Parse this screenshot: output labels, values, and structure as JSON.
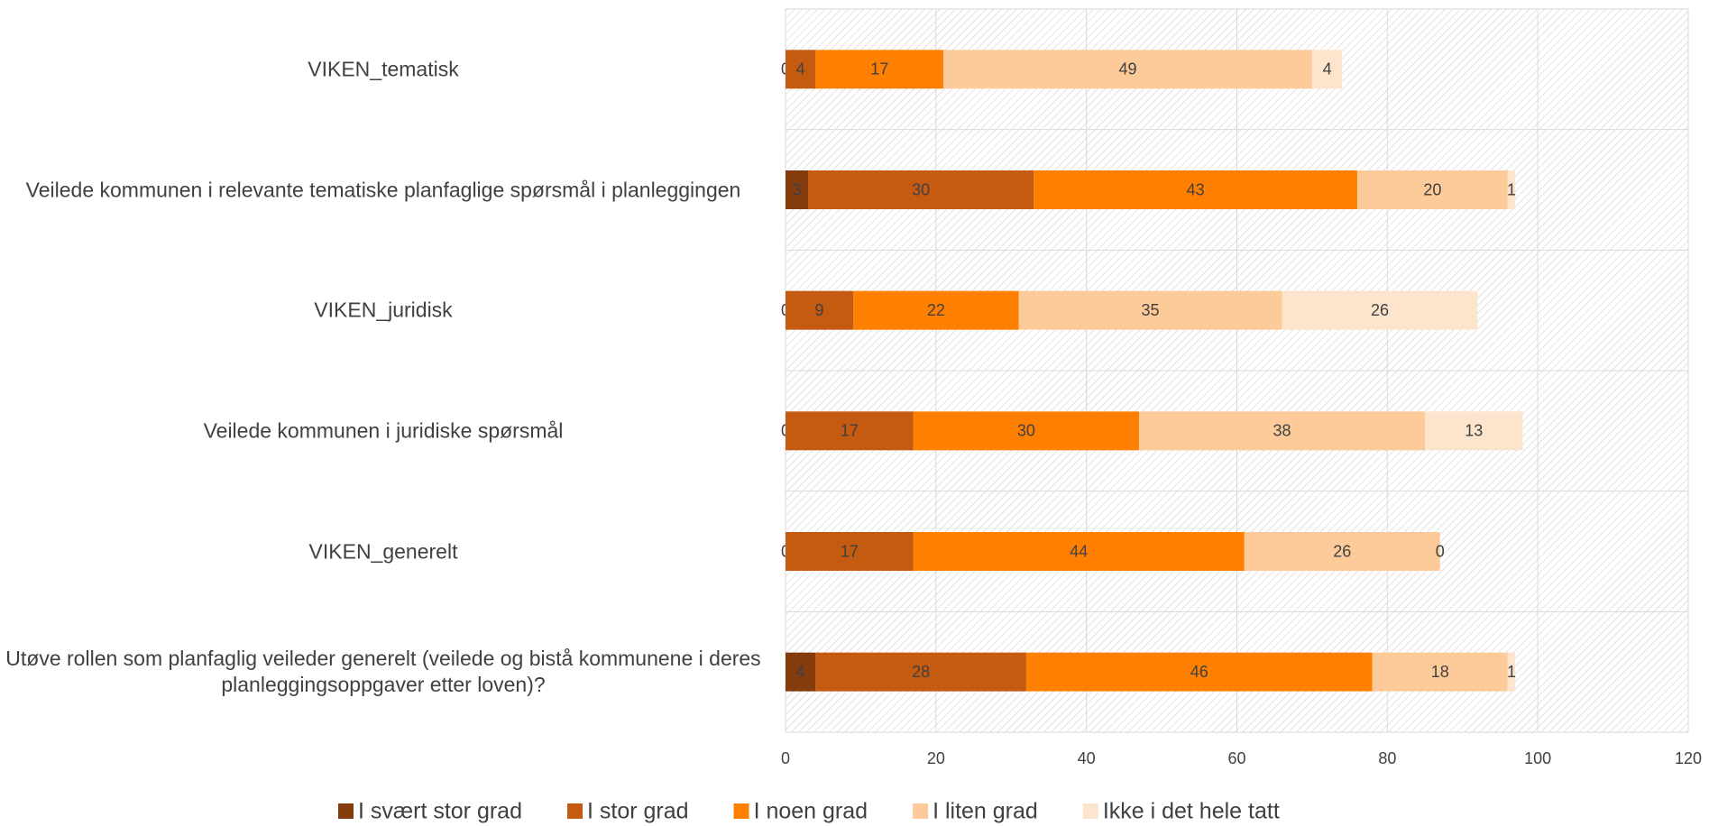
{
  "chart_data": {
    "type": "stacked_barh",
    "categories": [
      "VIKEN_tematisk",
      "Veilede kommunen i relevante tematiske planfaglige spørsmål i planleggingen",
      "VIKEN_juridisk",
      "Veilede kommunen i juridiske spørsmål",
      "VIKEN_generelt",
      "Utøve rollen som planfaglig veileder generelt (veilede og bistå kommunene i deres planleggingsoppgaver etter loven)?"
    ],
    "series": [
      {
        "name": "I svært stor grad",
        "color": "#843c0c",
        "values": [
          0,
          3,
          0,
          0,
          0,
          4
        ]
      },
      {
        "name": "I stor grad",
        "color": "#c55a11",
        "values": [
          4,
          30,
          9,
          17,
          17,
          28
        ]
      },
      {
        "name": "I noen grad",
        "color": "#ff8000",
        "values": [
          17,
          43,
          22,
          30,
          44,
          46
        ]
      },
      {
        "name": "I liten grad",
        "color": "#fdcb9a",
        "values": [
          49,
          20,
          35,
          38,
          26,
          18
        ]
      },
      {
        "name": "Ikke i det hele tatt",
        "color": "#fde4cd",
        "values": [
          4,
          1,
          26,
          13,
          0,
          1
        ]
      }
    ],
    "xlim": [
      0,
      120
    ],
    "xticks": [
      0,
      20,
      40,
      60,
      80,
      100,
      120
    ],
    "grid": true,
    "legend": "bottom"
  }
}
